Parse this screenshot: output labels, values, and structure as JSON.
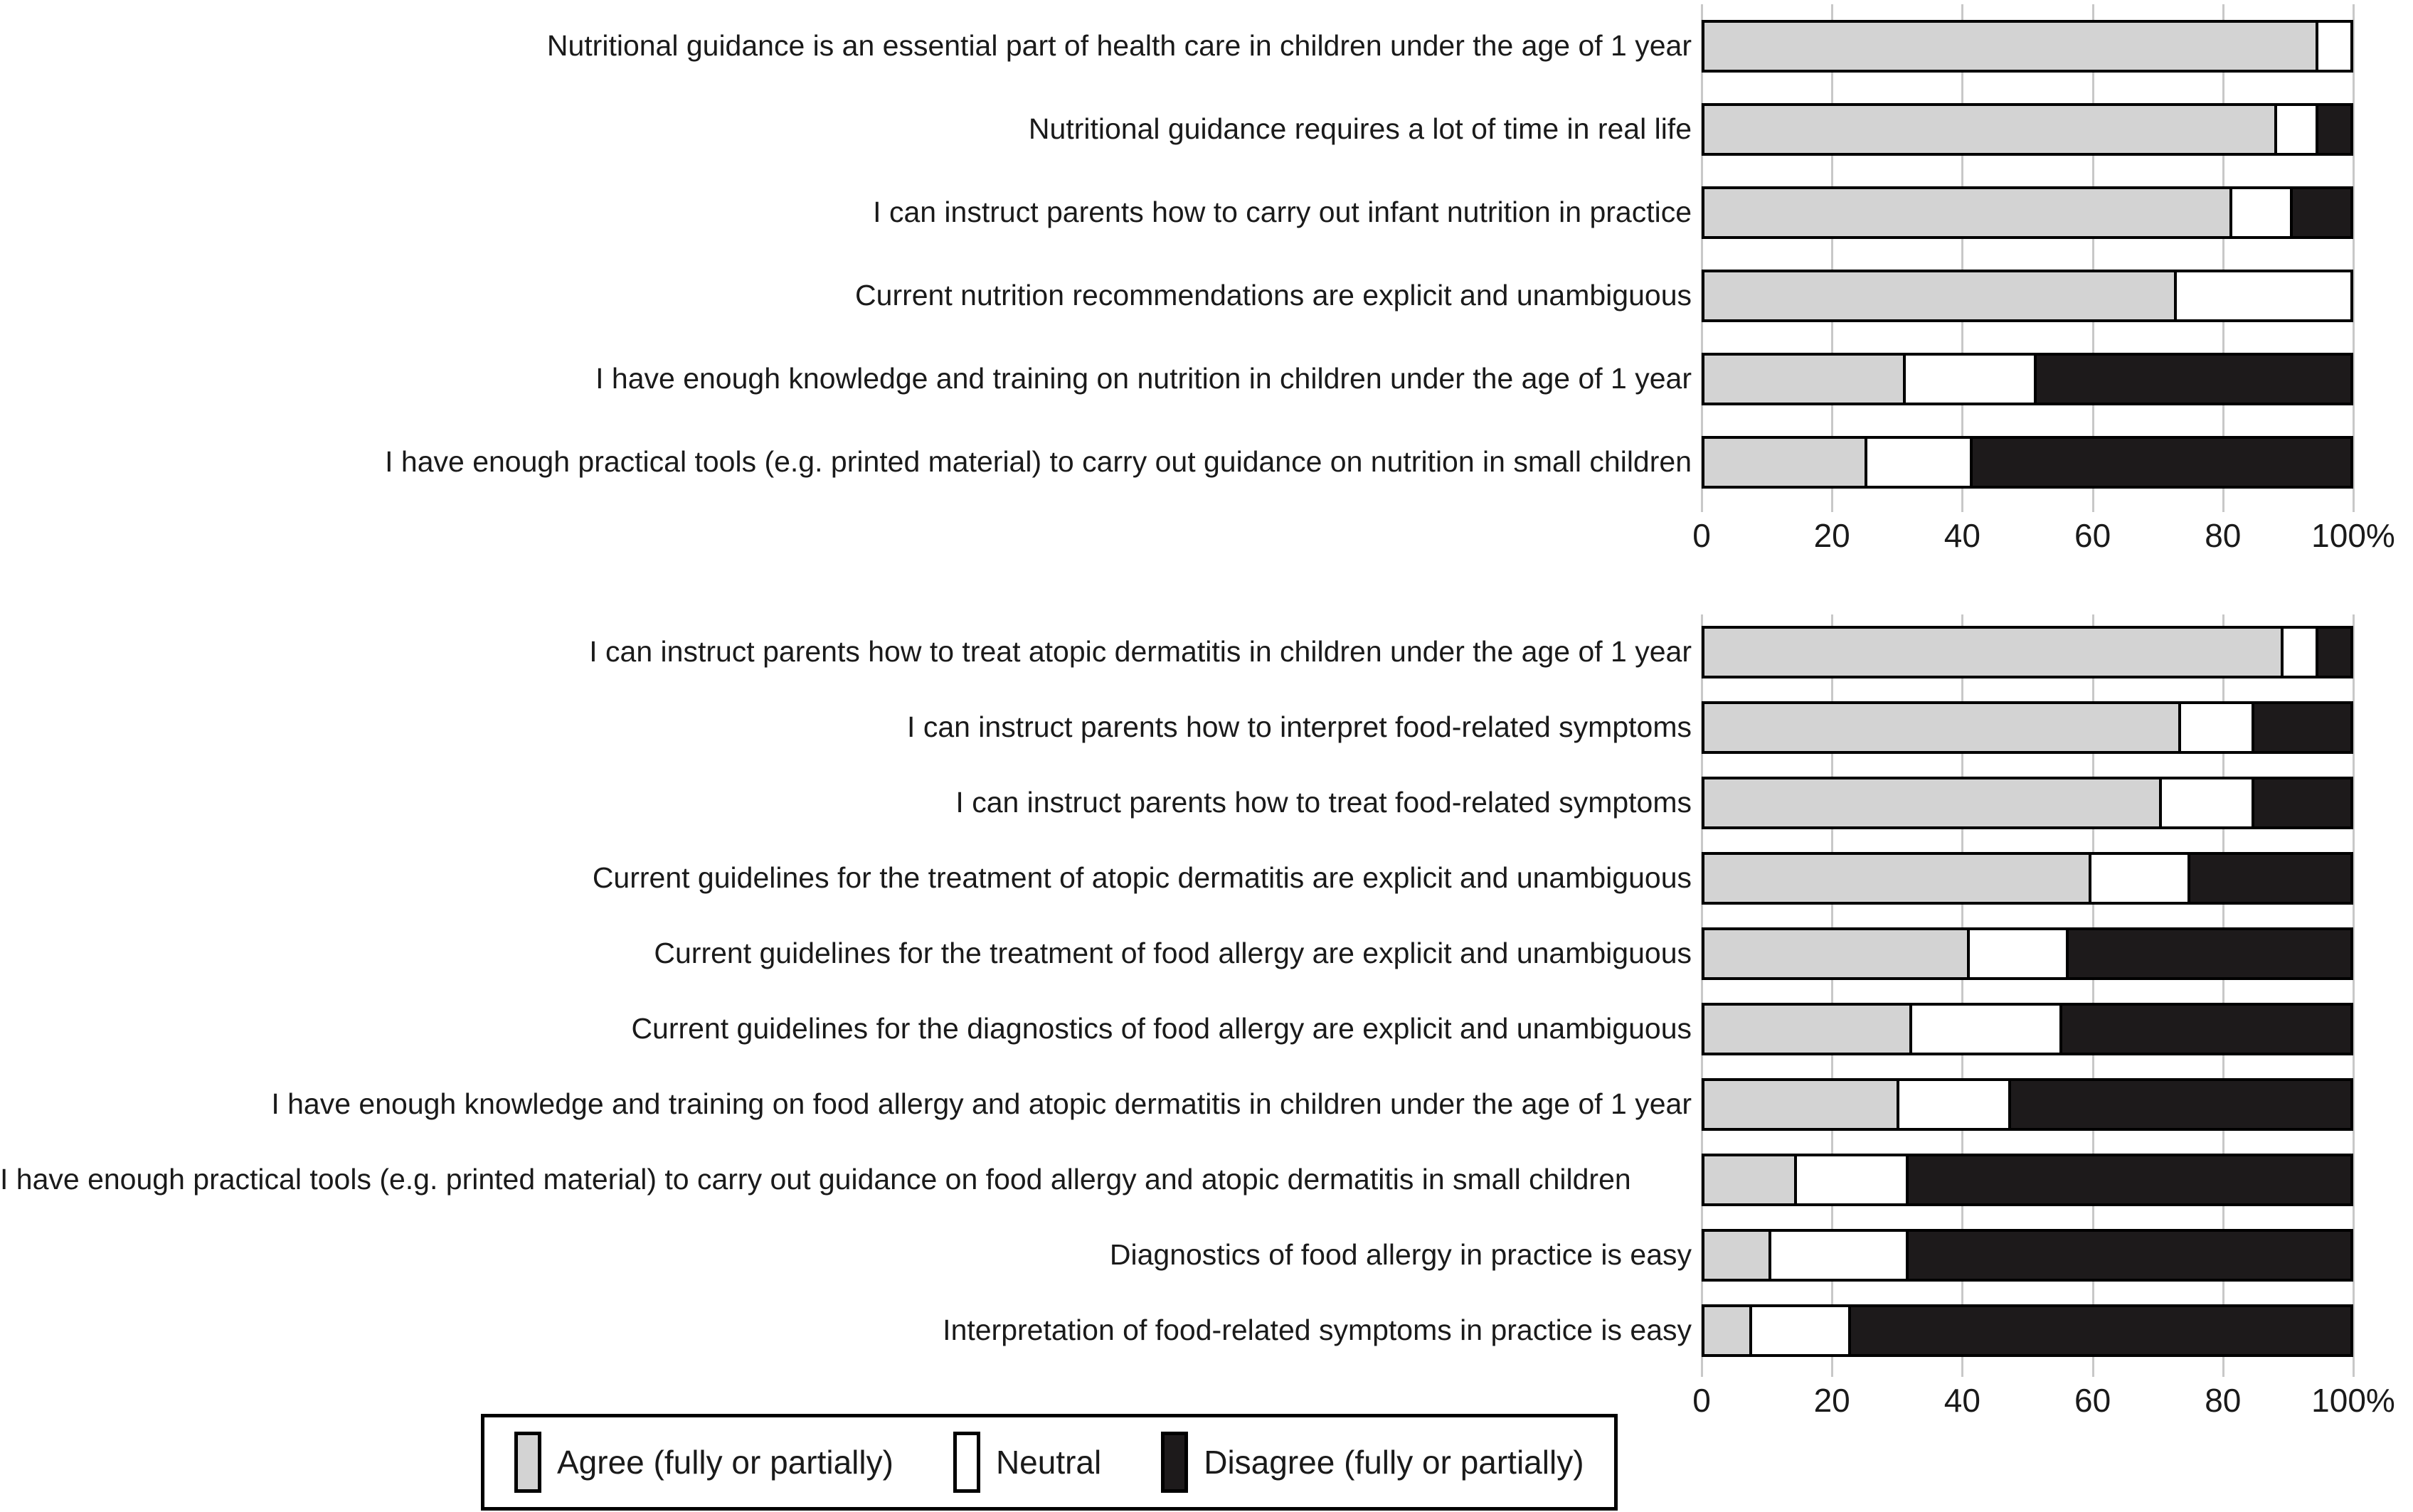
{
  "colors": {
    "agree": "#d3d3d3",
    "neutral": "#ffffff",
    "disagree": "#1d1a1b",
    "border": "#000000",
    "gridline": "#c8c8c8"
  },
  "legend": {
    "items": [
      {
        "key": "agree",
        "label": "Agree (fully or partially)"
      },
      {
        "key": "neutral",
        "label": "Neutral"
      },
      {
        "key": "disagree",
        "label": "Disagree (fully or partially)"
      }
    ]
  },
  "chart_data": [
    {
      "type": "bar",
      "orientation": "horizontal",
      "stacked": true,
      "unit": "percent",
      "xlim": [
        0,
        100
      ],
      "grid": true,
      "axis_ticks": [
        "0",
        "20",
        "40",
        "60",
        "80",
        "100%"
      ],
      "series_names": [
        "Agree (fully or partially)",
        "Neutral",
        "Disagree (fully or partially)"
      ],
      "rows": [
        {
          "label": "Nutritional guidance is an essential part of health care in children under the age of 1 year",
          "agree": 95,
          "neutral": 5,
          "disagree": 0
        },
        {
          "label": "Nutritional guidance requires a lot of time in real life",
          "agree": 89,
          "neutral": 6,
          "disagree": 5
        },
        {
          "label": "I can instruct parents how to carry out infant nutrition in practice",
          "agree": 82,
          "neutral": 9,
          "disagree": 9
        },
        {
          "label": "Current nutrition recommendations are explicit and unambiguous",
          "agree": 73,
          "neutral": 27,
          "disagree": 0
        },
        {
          "label": "I have enough knowledge and training on nutrition in children under the age of 1 year",
          "agree": 31,
          "neutral": 20,
          "disagree": 49
        },
        {
          "label": "I have enough practical tools (e.g. printed material) to carry out guidance on nutrition in small children",
          "agree": 25,
          "neutral": 16,
          "disagree": 59
        }
      ]
    },
    {
      "type": "bar",
      "orientation": "horizontal",
      "stacked": true,
      "unit": "percent",
      "xlim": [
        0,
        100
      ],
      "grid": true,
      "axis_ticks": [
        "0",
        "20",
        "40",
        "60",
        "80",
        "100%"
      ],
      "series_names": [
        "Agree (fully or partially)",
        "Neutral",
        "Disagree (fully or partially)"
      ],
      "rows": [
        {
          "label": "I can instruct parents how to treat atopic dermatitis in children under the age of 1 year",
          "agree": 90,
          "neutral": 5,
          "disagree": 5
        },
        {
          "label": "I can instruct parents how to interpret food-related symptoms",
          "agree": 74,
          "neutral": 11,
          "disagree": 15
        },
        {
          "label": "I can instruct parents how to treat food-related symptoms",
          "agree": 71,
          "neutral": 14,
          "disagree": 15
        },
        {
          "label": "Current guidelines for the treatment of atopic dermatitis are explicit and unambiguous",
          "agree": 60,
          "neutral": 15,
          "disagree": 25
        },
        {
          "label": "Current guidelines for the treatment of food allergy are explicit and unambiguous",
          "agree": 41,
          "neutral": 15,
          "disagree": 44
        },
        {
          "label": "Current guidelines for the diagnostics of food allergy are explicit and unambiguous",
          "agree": 32,
          "neutral": 23,
          "disagree": 45
        },
        {
          "label": "I have enough knowledge and training on food allergy and atopic dermatitis in children under the age of 1 year",
          "agree": 30,
          "neutral": 17,
          "disagree": 53
        },
        {
          "label": "I have enough practical tools (e.g. printed material) to carry out guidance on food allergy and atopic dermatitis in small children",
          "align": "left",
          "agree": 14,
          "neutral": 17,
          "disagree": 69
        },
        {
          "label": "Diagnostics of food allergy in practice is easy",
          "agree": 10,
          "neutral": 21,
          "disagree": 69
        },
        {
          "label": "Interpretation of food-related symptoms in practice is easy",
          "agree": 7,
          "neutral": 15,
          "disagree": 78
        }
      ]
    }
  ]
}
